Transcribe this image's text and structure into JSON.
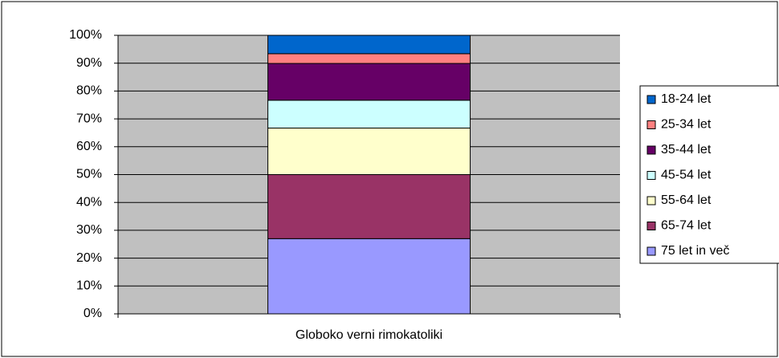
{
  "chart_data": {
    "type": "stacked_bar_100",
    "categories": [
      "Globoko verni rimokatoliki"
    ],
    "series": [
      {
        "name": "75 let in več",
        "color": "#9999FF",
        "values": [
          27
        ]
      },
      {
        "name": "65-74 let",
        "color": "#993366",
        "values": [
          23
        ]
      },
      {
        "name": "55-64 let",
        "color": "#FFFFCC",
        "values": [
          16.7
        ]
      },
      {
        "name": "45-54 let",
        "color": "#CCFFFF",
        "values": [
          10
        ]
      },
      {
        "name": "35-44 let",
        "color": "#660066",
        "values": [
          13.2
        ]
      },
      {
        "name": "25-34 let",
        "color": "#FF8080",
        "values": [
          3.5
        ]
      },
      {
        "name": "18-24 let",
        "color": "#0066CC",
        "values": [
          6.6
        ]
      }
    ],
    "ylim": [
      0,
      100
    ],
    "yticks": [
      {
        "value": 0,
        "label": "0%"
      },
      {
        "value": 10,
        "label": "10%"
      },
      {
        "value": 20,
        "label": "20%"
      },
      {
        "value": 30,
        "label": "30%"
      },
      {
        "value": 40,
        "label": "40%"
      },
      {
        "value": 50,
        "label": "50%"
      },
      {
        "value": 60,
        "label": "60%"
      },
      {
        "value": 70,
        "label": "70%"
      },
      {
        "value": 80,
        "label": "80%"
      },
      {
        "value": 90,
        "label": "90%"
      },
      {
        "value": 100,
        "label": "100%"
      }
    ],
    "grid": true,
    "legend": "right",
    "plot_background": "#C0C0C0"
  }
}
